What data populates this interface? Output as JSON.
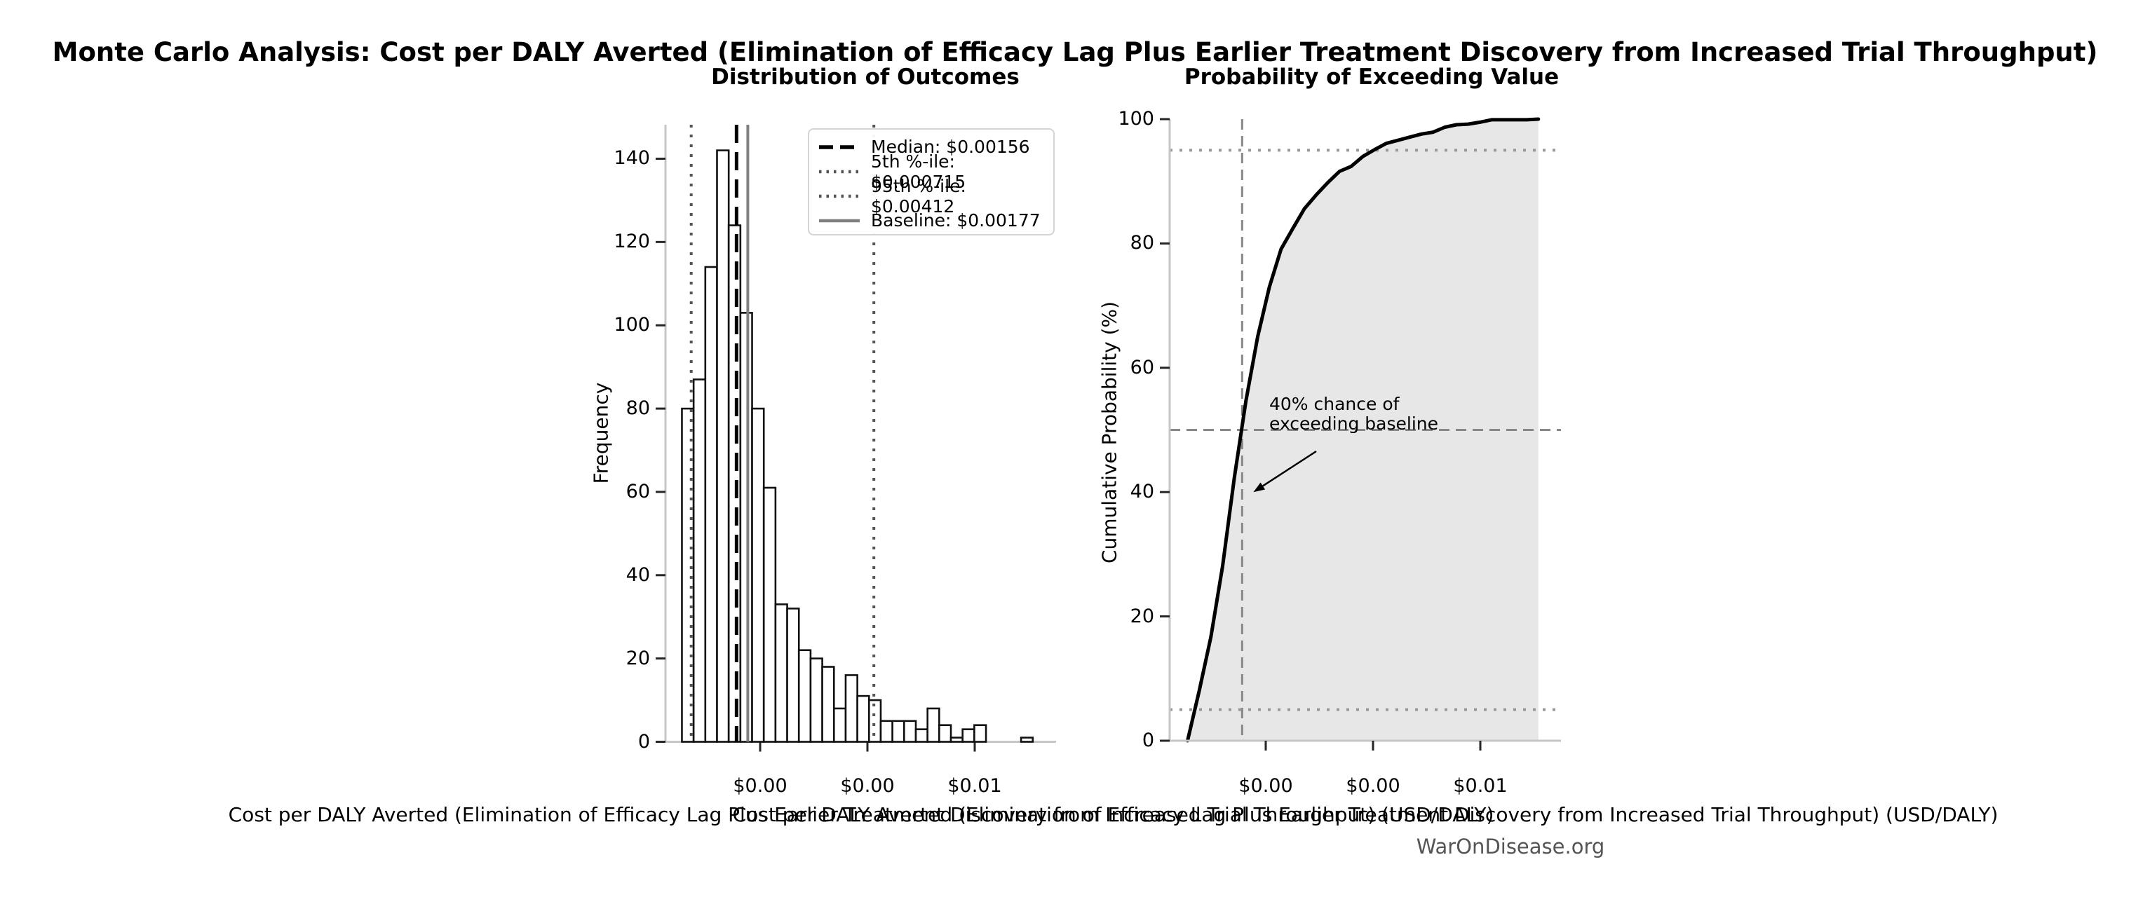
{
  "figure_title": "Monte Carlo Analysis: Cost per DALY Averted (Elimination of Efficacy Lag Plus Earlier Treatment Discovery from Increased Trial Throughput)",
  "footer": "WarOnDisease.org",
  "chart_data": [
    {
      "type": "bar",
      "subtype": "histogram",
      "title": "Distribution of Outcomes",
      "xlabel": "Cost per DALY Averted (Elimination of Efficacy Lag Plus Earlier Treatment Discovery from Increased Trial Throughput) (USD/DALY)",
      "ylabel": "Frequency",
      "x_ticks": {
        "values": [
          0.002,
          0.004,
          0.006
        ],
        "labels": [
          "$0.00",
          "$0.00",
          "$0.01"
        ]
      },
      "y_ticks": [
        0,
        20,
        40,
        60,
        80,
        100,
        120,
        140
      ],
      "ylim": [
        0,
        148.2
      ],
      "bins": {
        "start": 0.000542,
        "width": 0.000218
      },
      "counts": [
        80,
        87,
        114,
        142,
        124,
        103,
        80,
        61,
        33,
        32,
        22,
        20,
        18,
        8,
        16,
        11,
        10,
        5,
        5,
        5,
        3,
        8,
        4,
        1,
        3,
        4,
        0,
        0,
        0,
        1
      ],
      "total_simulations": 1000,
      "bar_fill": "#ffffff",
      "bar_edge": "#111111",
      "ref_lines": [
        {
          "name": "median",
          "value": 0.00156,
          "style": "dashed-thick",
          "color": "#000000",
          "legend": "Median: $0.00156"
        },
        {
          "name": "p5",
          "value": 0.000715,
          "style": "dotted",
          "color": "#555555",
          "legend": "5th %-ile: $0.000715"
        },
        {
          "name": "p95",
          "value": 0.00412,
          "style": "dotted",
          "color": "#555555",
          "legend": "95th %-ile: $0.00412"
        },
        {
          "name": "baseline",
          "value": 0.00177,
          "style": "solid",
          "color": "#808080",
          "legend": "Baseline: $0.00177"
        }
      ],
      "legend_position": "upper right"
    },
    {
      "type": "line",
      "subtype": "cdf",
      "title": "Probability of Exceeding Value",
      "xlabel": "Cost per DALY Averted (Elimination of Efficacy Lag Plus Earlier Treatment Discovery from Increased Trial Throughput) (USD/DALY)",
      "ylabel": "Cumulative Probability (%)",
      "x_ticks": {
        "values": [
          0.002,
          0.004,
          0.006
        ],
        "labels": [
          "$0.00",
          "$0.00",
          "$0.01"
        ]
      },
      "y_ticks": [
        0,
        20,
        40,
        60,
        80,
        100
      ],
      "ylim": [
        0,
        100
      ],
      "curve": {
        "x_start": 0.000542,
        "x_step": 0.000218,
        "cumulative_pct": [
          0,
          8.0,
          16.7,
          28.1,
          42.3,
          54.7,
          65.0,
          73.0,
          79.1,
          82.4,
          85.6,
          87.8,
          89.8,
          91.6,
          92.4,
          94.0,
          95.1,
          96.1,
          96.6,
          97.1,
          97.6,
          97.9,
          98.7,
          99.1,
          99.2,
          99.5,
          99.9,
          99.9,
          99.9,
          99.9,
          100.0
        ]
      },
      "line_color": "#000000",
      "fill_color": "#e7e7e7",
      "ref_lines": [
        {
          "name": "median-vertical",
          "axis": "x",
          "value": 0.00156,
          "style": "dashed",
          "color": "#888888"
        },
        {
          "name": "p50-horizontal",
          "axis": "y",
          "value": 50,
          "style": "dashed",
          "color": "#888888"
        },
        {
          "name": "p95-horizontal",
          "axis": "y",
          "value": 95,
          "style": "dotted",
          "color": "#999999"
        },
        {
          "name": "p5-horizontal",
          "axis": "y",
          "value": 5,
          "style": "dotted",
          "color": "#999999"
        }
      ],
      "annotation": {
        "lines": [
          "40% chance of",
          "exceeding baseline"
        ],
        "target": {
          "value": 0.00177,
          "pct": 40
        }
      }
    }
  ]
}
